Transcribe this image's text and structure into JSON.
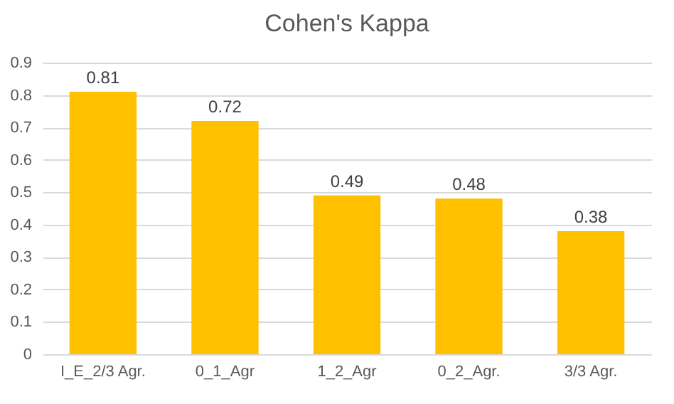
{
  "chart_data": {
    "type": "bar",
    "title": "Cohen's Kappa",
    "categories": [
      "I_E_2/3 Agr.",
      "0_1_Agr",
      "1_2_Agr",
      "0_2_Agr.",
      "3/3 Agr."
    ],
    "values": [
      0.81,
      0.72,
      0.49,
      0.48,
      0.38
    ],
    "color": "#ffc000",
    "ylim": [
      0,
      0.9
    ],
    "yticks": [
      0,
      0.1,
      0.2,
      0.3,
      0.4,
      0.5,
      0.6,
      0.7,
      0.8,
      0.9
    ],
    "grid": "y",
    "data_labels": true
  }
}
